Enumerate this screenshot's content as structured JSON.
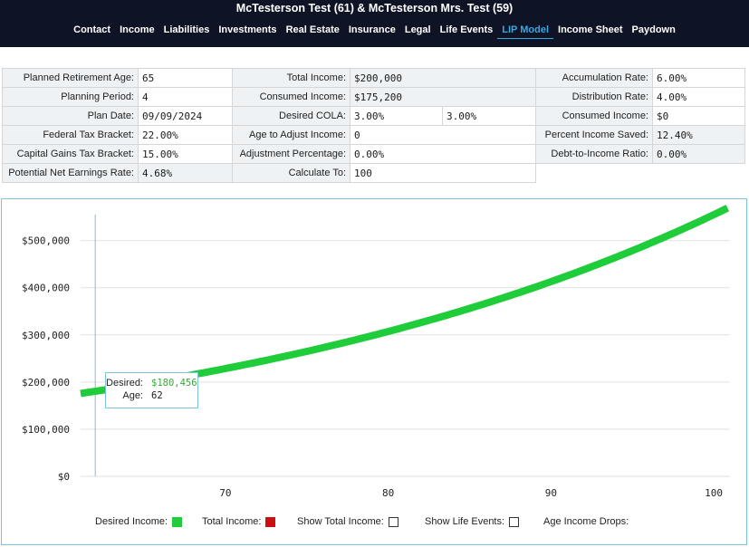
{
  "header": {
    "client_title": "McTesterson Test (61) & McTesterson Mrs. Test (59)",
    "nav": [
      {
        "label": "Contact"
      },
      {
        "label": "Income"
      },
      {
        "label": "Liabilities"
      },
      {
        "label": "Investments"
      },
      {
        "label": "Real Estate"
      },
      {
        "label": "Insurance"
      },
      {
        "label": "Legal"
      },
      {
        "label": "Life Events"
      },
      {
        "label": "LIP Model",
        "active": true
      },
      {
        "label": "Income Sheet"
      },
      {
        "label": "Paydown"
      }
    ]
  },
  "params": {
    "planned_retirement_age": {
      "label": "Planned Retirement Age:",
      "value": "65"
    },
    "planning_period": {
      "label": "Planning Period:",
      "value": "4"
    },
    "plan_date": {
      "label": "Plan Date:",
      "value": "09/09/2024"
    },
    "federal_tax_bracket": {
      "label": "Federal Tax Bracket:",
      "value": "22.00%"
    },
    "capital_gains_tax_bracket": {
      "label": "Capital Gains Tax Bracket:",
      "value": "15.00%"
    },
    "potential_net_earnings_rate": {
      "label": "Potential Net Earnings Rate:",
      "value": "4.68%"
    },
    "total_income": {
      "label": "Total Income:",
      "value": "$200,000"
    },
    "consumed_income": {
      "label": "Consumed Income:",
      "value": "$175,200"
    },
    "desired_cola": {
      "label": "Desired COLA:",
      "value": "3.00%",
      "value2": "3.00%"
    },
    "age_to_adjust_income": {
      "label": "Age to Adjust Income:",
      "value": "0"
    },
    "adjustment_percentage": {
      "label": "Adjustment Percentage:",
      "value": "0.00%"
    },
    "calculate_to": {
      "label": "Calculate To:",
      "value": "100"
    },
    "accumulation_rate": {
      "label": "Accumulation Rate:",
      "value": "6.00%"
    },
    "distribution_rate": {
      "label": "Distribution Rate:",
      "value": "4.00%"
    },
    "consumed_income_right": {
      "label": "Consumed Income:",
      "value": "$0"
    },
    "percent_income_saved": {
      "label": "Percent Income Saved:",
      "value": "12.40%"
    },
    "debt_to_income_ratio": {
      "label": "Debt-to-Income Ratio:",
      "value": "0.00%"
    }
  },
  "chart_data": {
    "type": "line",
    "x": [
      62,
      65,
      70,
      75,
      80,
      85,
      90,
      95,
      100
    ],
    "series": [
      {
        "name": "Desired Income",
        "color": "#1fcc3a",
        "values": [
          180456,
          197190,
          228598,
          265008,
          307216,
          356147,
          412871,
          478630,
          554864
        ]
      }
    ],
    "x_ticks": [
      70,
      80,
      90,
      100
    ],
    "x_tick_labels": [
      "70",
      "80",
      "90",
      "100"
    ],
    "y_ticks": [
      0,
      100000,
      200000,
      300000,
      400000,
      500000
    ],
    "y_tick_labels": [
      "$0",
      "$100,000",
      "$200,000",
      "$300,000",
      "$400,000",
      "$500,000"
    ],
    "xlim": [
      61.1,
      101
    ],
    "ylim": [
      0,
      555000
    ],
    "grid": "horizontal",
    "hover_x": 62
  },
  "tooltip": {
    "desired_label": "Desired:",
    "desired_value": "$180,456",
    "age_label": "Age:",
    "age_value": "62"
  },
  "legend": {
    "desired_income": {
      "label": "Desired Income:",
      "color": "#1fcc3a"
    },
    "total_income": {
      "label": "Total Income:",
      "color": "#cc1111"
    },
    "show_total_income": {
      "label": "Show Total Income:"
    },
    "show_life_events": {
      "label": "Show Life Events:"
    },
    "age_income_drops": {
      "label": "Age Income Drops:"
    }
  }
}
